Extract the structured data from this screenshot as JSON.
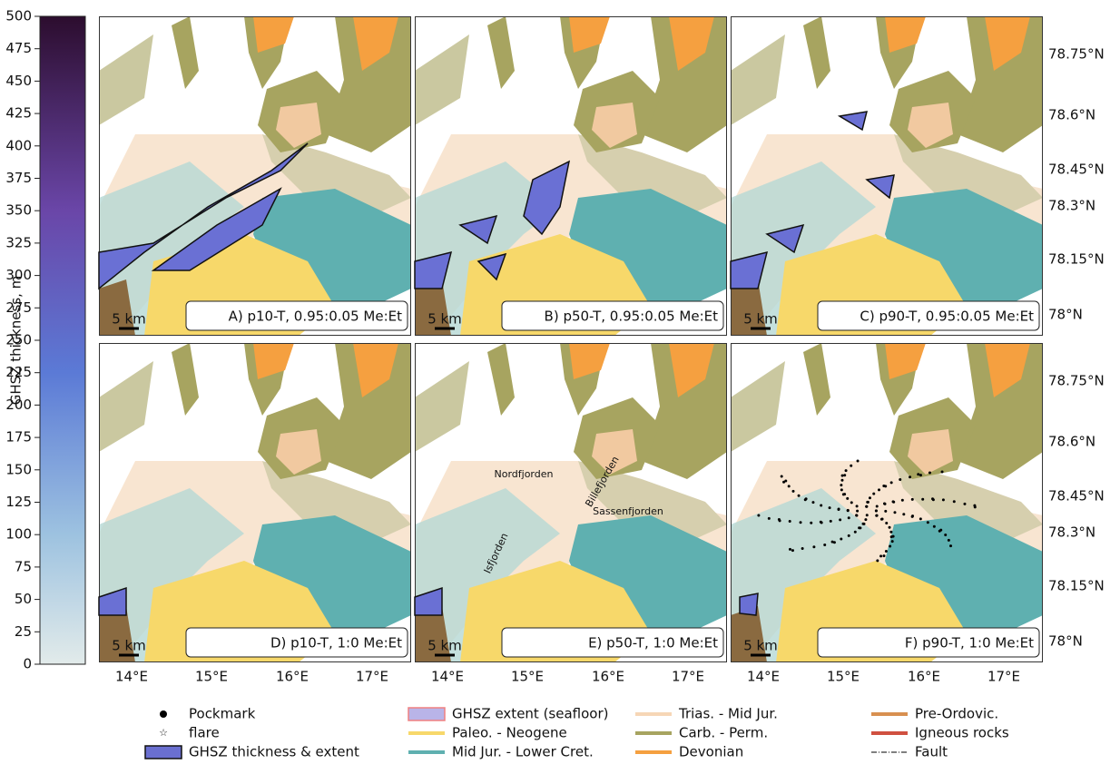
{
  "colorbar": {
    "label": "GHSZ thickness, m",
    "lim": [
      0,
      500
    ],
    "ticks": [
      0,
      25,
      50,
      75,
      100,
      125,
      150,
      175,
      200,
      225,
      250,
      275,
      300,
      325,
      350,
      375,
      400,
      425,
      450,
      475,
      500
    ]
  },
  "panels": [
    {
      "label": "A) p10-T, 0.95:0.05 Me:Et",
      "scale": "5 km"
    },
    {
      "label": "B) p50-T, 0.95:0.05 Me:Et",
      "scale": "5 km"
    },
    {
      "label": "C) p90-T, 0.95:0.05 Me:Et",
      "scale": "5 km"
    },
    {
      "label": "D) p10-T, 1:0 Me:Et",
      "scale": "5 km"
    },
    {
      "label": "E) p50-T, 1:0 Me:Et",
      "scale": "5 km"
    },
    {
      "label": "F) p90-T, 1:0 Me:Et",
      "scale": "5 km"
    }
  ],
  "lat_ticks": [
    "78.75°N",
    "78.6°N",
    "78.45°N",
    "78.3°N",
    "78.15°N",
    "78°N"
  ],
  "lon_ticks": [
    "14°E",
    "15°E",
    "16°E",
    "17°E"
  ],
  "place_names": [
    "Nordfjorden",
    "Billefjorden",
    "Sassenfjorden",
    "Isfjorden"
  ],
  "legend": [
    {
      "label": "Pockmark",
      "color": "#000000",
      "kind": "dot"
    },
    {
      "label": "flare",
      "color": "#e03030",
      "kind": "star"
    },
    {
      "label": "GHSZ thickness & extent",
      "color": "#6a6fd0",
      "kind": "box"
    },
    {
      "label": "GHSZ extent (seafloor)",
      "color": "#b9b4e8",
      "kind": "pinkbox"
    },
    {
      "label": "Paleo. - Neogene",
      "color": "#f7d86a",
      "kind": "line"
    },
    {
      "label": "Mid Jur. - Lower Cret.",
      "color": "#5fb0b0",
      "kind": "line"
    },
    {
      "label": "Trias. - Mid Jur.",
      "color": "#f6d6b6",
      "kind": "line"
    },
    {
      "label": "Carb. - Perm.",
      "color": "#a7a460",
      "kind": "line"
    },
    {
      "label": "Devonian",
      "color": "#f5a040",
      "kind": "line"
    },
    {
      "label": "Pre-Ordovic.",
      "color": "#d89050",
      "kind": "line"
    },
    {
      "label": "Igneous rocks",
      "color": "#d05040",
      "kind": "line"
    },
    {
      "label": "Fault",
      "color": "#000000",
      "kind": "dash"
    }
  ]
}
